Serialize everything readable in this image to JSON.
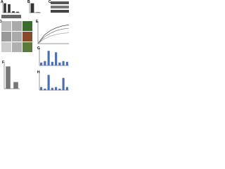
{
  "panels": [
    {
      "label": "A",
      "type": "bar",
      "values": [
        1,
        0.9,
        0.15,
        0.1
      ],
      "ylim": [
        0,
        1.2
      ],
      "color": "#333333"
    },
    {
      "label": "B",
      "type": "bar",
      "values": [
        1,
        0.05
      ],
      "ylim": [
        0,
        1.2
      ],
      "color": "#333333"
    },
    {
      "label": "C",
      "type": "blot"
    },
    {
      "label": "D",
      "type": "image"
    },
    {
      "label": "E",
      "type": "line",
      "ylim": [
        0,
        1.2
      ],
      "series": [
        {
          "color": "#222222",
          "values": [
            0,
            0.45,
            0.7,
            0.85,
            0.95,
            1
          ]
        },
        {
          "color": "#666666",
          "values": [
            0,
            0.35,
            0.55,
            0.7,
            0.78,
            0.82
          ]
        },
        {
          "color": "#999999",
          "values": [
            0,
            0.25,
            0.4,
            0.5,
            0.55,
            0.58
          ]
        }
      ]
    },
    {
      "label": "F",
      "type": "bar",
      "values": [
        1,
        0.3
      ],
      "ylim": [
        0,
        1.2
      ],
      "color": "#777777"
    },
    {
      "label": "G",
      "type": "bar",
      "values": [
        0.2,
        0.3,
        1,
        0.25,
        0.9,
        0.2,
        0.3,
        0.25
      ],
      "ylim": [
        0,
        1.2
      ],
      "color": "#4a6fb5"
    },
    {
      "label": "H",
      "type": "bar",
      "values": [
        0.2,
        0.1,
        1,
        0.15,
        0.2,
        0.1,
        0.8,
        0.2
      ],
      "ylim": [
        0,
        1.2
      ],
      "color": "#4a6fb5"
    }
  ]
}
